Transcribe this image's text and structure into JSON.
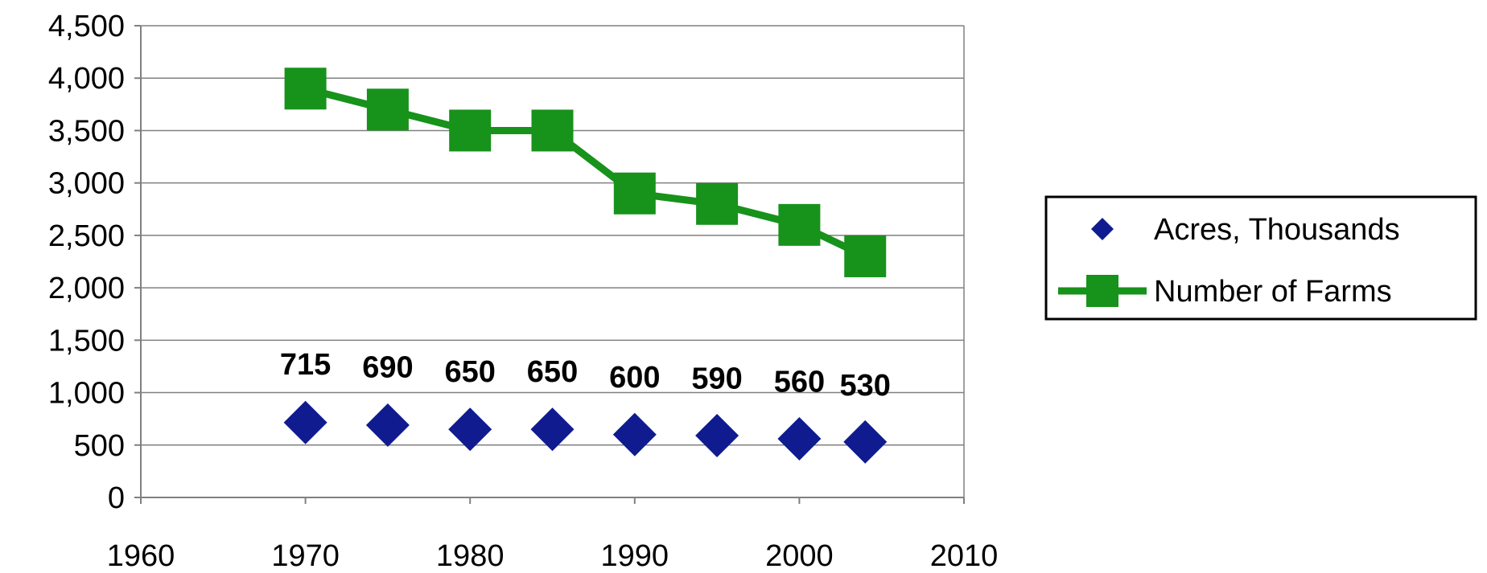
{
  "chart_data": {
    "type": "scatter",
    "title": "",
    "xlabel": "",
    "ylabel": "",
    "xlim": [
      1960,
      2010
    ],
    "ylim": [
      0,
      4500
    ],
    "x_ticks": [
      1960,
      1970,
      1980,
      1990,
      2000,
      2010
    ],
    "x_tick_labels": [
      "1960",
      "1970",
      "1980",
      "1990",
      "2000",
      "2010"
    ],
    "y_ticks": [
      0,
      500,
      1000,
      1500,
      2000,
      2500,
      3000,
      3500,
      4000,
      4500
    ],
    "y_tick_labels": [
      "0",
      "500",
      "1,000",
      "1,500",
      "2,000",
      "2,500",
      "3,000",
      "3,500",
      "4,000",
      "4,500"
    ],
    "grid": "horizontal",
    "legend_position": "right",
    "series": [
      {
        "name": "Acres, Thousands",
        "marker": "diamond",
        "line": false,
        "color": "#0f1b8f",
        "x": [
          1970,
          1975,
          1980,
          1985,
          1990,
          1995,
          2000,
          2004
        ],
        "values": [
          715,
          690,
          650,
          650,
          600,
          590,
          560,
          530
        ],
        "data_labels": [
          "715",
          "690",
          "650",
          "650",
          "600",
          "590",
          "560",
          "530"
        ]
      },
      {
        "name": "Number of Farms",
        "marker": "square",
        "line": true,
        "color": "#17921b",
        "x": [
          1970,
          1975,
          1980,
          1985,
          1990,
          1995,
          2000,
          2004
        ],
        "values": [
          3900,
          3700,
          3500,
          3500,
          2900,
          2800,
          2600,
          2300
        ]
      }
    ]
  }
}
